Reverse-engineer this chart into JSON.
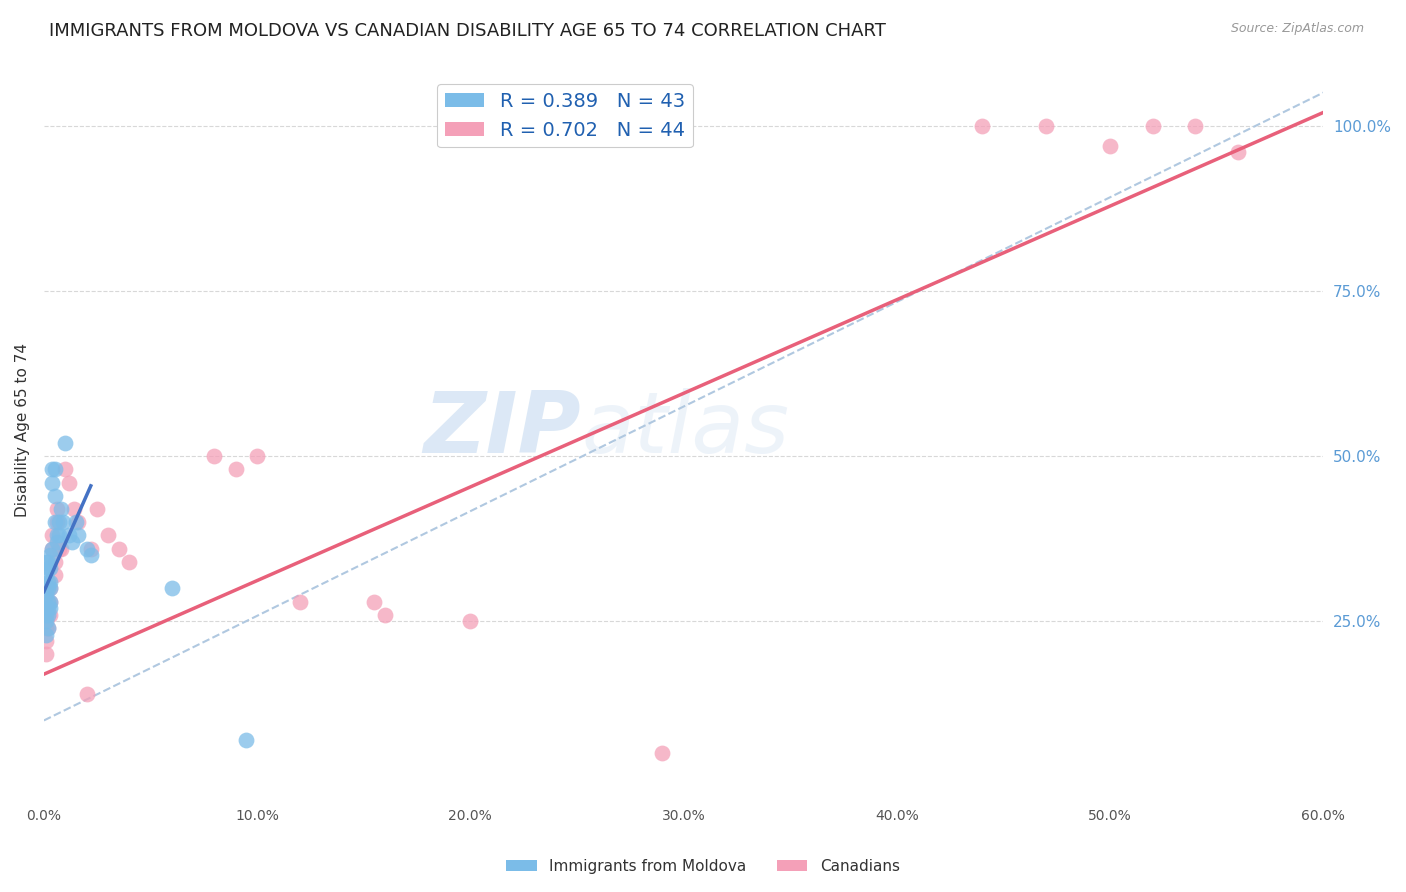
{
  "title": "IMMIGRANTS FROM MOLDOVA VS CANADIAN DISABILITY AGE 65 TO 74 CORRELATION CHART",
  "source": "Source: ZipAtlas.com",
  "ylabel": "Disability Age 65 to 74",
  "xlim": [
    0.0,
    0.6
  ],
  "ylim": [
    -0.02,
    1.1
  ],
  "xtick_labels": [
    "0.0%",
    "10.0%",
    "20.0%",
    "30.0%",
    "40.0%",
    "50.0%",
    "60.0%"
  ],
  "xtick_vals": [
    0.0,
    0.1,
    0.2,
    0.3,
    0.4,
    0.5,
    0.6
  ],
  "ytick_labels_right": [
    "100.0%",
    "75.0%",
    "50.0%",
    "25.0%"
  ],
  "ytick_vals_right": [
    1.0,
    0.75,
    0.5,
    0.25
  ],
  "blue_R": 0.389,
  "blue_N": 43,
  "pink_R": 0.702,
  "pink_N": 44,
  "blue_color": "#7bbce8",
  "pink_color": "#f4a0b8",
  "blue_line_color": "#4472c4",
  "pink_line_color": "#e8607a",
  "dashed_line_color": "#b0c8e0",
  "watermark_zip": "ZIP",
  "watermark_atlas": "atlas",
  "blue_scatter_x": [
    0.001,
    0.001,
    0.001,
    0.001,
    0.001,
    0.001,
    0.001,
    0.001,
    0.002,
    0.002,
    0.002,
    0.002,
    0.002,
    0.002,
    0.002,
    0.002,
    0.003,
    0.003,
    0.003,
    0.003,
    0.003,
    0.003,
    0.004,
    0.004,
    0.004,
    0.005,
    0.005,
    0.005,
    0.006,
    0.006,
    0.007,
    0.007,
    0.008,
    0.009,
    0.01,
    0.012,
    0.013,
    0.015,
    0.016,
    0.02,
    0.022,
    0.06,
    0.095
  ],
  "blue_scatter_y": [
    0.34,
    0.32,
    0.3,
    0.29,
    0.27,
    0.26,
    0.25,
    0.23,
    0.34,
    0.33,
    0.31,
    0.3,
    0.28,
    0.27,
    0.26,
    0.24,
    0.35,
    0.33,
    0.31,
    0.3,
    0.28,
    0.27,
    0.48,
    0.46,
    0.36,
    0.48,
    0.44,
    0.4,
    0.38,
    0.37,
    0.4,
    0.38,
    0.42,
    0.4,
    0.52,
    0.38,
    0.37,
    0.4,
    0.38,
    0.36,
    0.35,
    0.3,
    0.07
  ],
  "pink_scatter_x": [
    0.001,
    0.001,
    0.001,
    0.001,
    0.001,
    0.002,
    0.002,
    0.002,
    0.002,
    0.003,
    0.003,
    0.003,
    0.004,
    0.004,
    0.005,
    0.005,
    0.006,
    0.006,
    0.007,
    0.008,
    0.01,
    0.012,
    0.014,
    0.016,
    0.02,
    0.022,
    0.025,
    0.03,
    0.035,
    0.04,
    0.08,
    0.09,
    0.1,
    0.12,
    0.155,
    0.16,
    0.2,
    0.29,
    0.44,
    0.47,
    0.5,
    0.52,
    0.54,
    0.56
  ],
  "pink_scatter_y": [
    0.28,
    0.26,
    0.24,
    0.22,
    0.2,
    0.3,
    0.28,
    0.26,
    0.24,
    0.3,
    0.28,
    0.26,
    0.38,
    0.36,
    0.34,
    0.32,
    0.42,
    0.4,
    0.36,
    0.36,
    0.48,
    0.46,
    0.42,
    0.4,
    0.14,
    0.36,
    0.42,
    0.38,
    0.36,
    0.34,
    0.5,
    0.48,
    0.5,
    0.28,
    0.28,
    0.26,
    0.25,
    0.05,
    1.0,
    1.0,
    0.97,
    1.0,
    1.0,
    0.96
  ],
  "blue_trendline_x": [
    0.0,
    0.022
  ],
  "blue_trendline_y": [
    0.295,
    0.455
  ],
  "pink_trendline_x": [
    0.0,
    0.6
  ],
  "pink_trendline_y": [
    0.17,
    1.02
  ],
  "dashed_line_x": [
    0.0,
    0.6
  ],
  "dashed_line_y": [
    0.1,
    1.05
  ],
  "grid_color": "#d8d8d8",
  "background_color": "#ffffff",
  "title_fontsize": 13,
  "label_fontsize": 11,
  "tick_fontsize": 10,
  "legend_fontsize": 14
}
